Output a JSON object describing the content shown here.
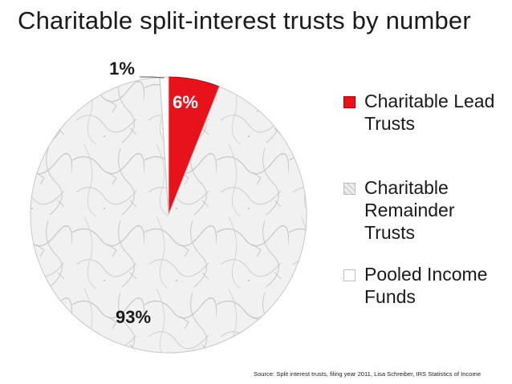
{
  "chart_data": {
    "type": "pie",
    "title": "Charitable split-interest trusts by number",
    "slices": [
      {
        "label": "Charitable Lead Trusts",
        "value": 6,
        "data_label": "6%",
        "color": "#e8121a"
      },
      {
        "label": "Charitable Remainder Trusts",
        "value": 93,
        "data_label": "93%",
        "color": "#dcdcdc"
      },
      {
        "label": "Pooled Income Funds",
        "value": 1,
        "data_label": "1%",
        "color": "#ffffff"
      }
    ],
    "legend": [
      "Charitable Lead Trusts",
      "Charitable Remainder Trusts",
      "Pooled Income Funds"
    ],
    "legend_position": "right",
    "source": "Source: Split interest trusts, filing year 2011, Lisa Schreiber, IRS Statistics of Income"
  }
}
